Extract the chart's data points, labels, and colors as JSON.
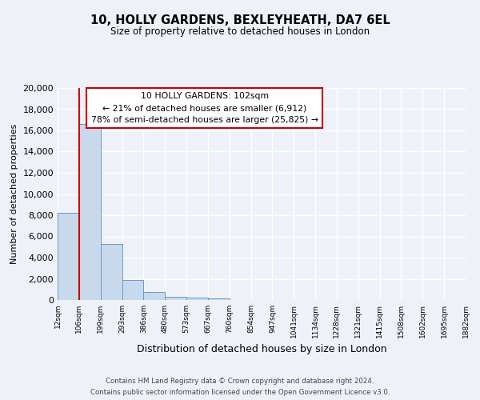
{
  "title_line1": "10, HOLLY GARDENS, BEXLEYHEATH, DA7 6EL",
  "title_line2": "Size of property relative to detached houses in London",
  "xlabel": "Distribution of detached houses by size in London",
  "ylabel": "Number of detached properties",
  "bar_values": [
    8200,
    16600,
    5300,
    1850,
    750,
    300,
    250,
    150,
    0,
    0,
    0,
    0,
    0,
    0,
    0,
    0,
    0,
    0,
    0
  ],
  "bin_labels": [
    "12sqm",
    "106sqm",
    "199sqm",
    "293sqm",
    "386sqm",
    "480sqm",
    "573sqm",
    "667sqm",
    "760sqm",
    "854sqm",
    "947sqm",
    "1041sqm",
    "1134sqm",
    "1228sqm",
    "1321sqm",
    "1415sqm",
    "1508sqm",
    "1602sqm",
    "1695sqm",
    "1882sqm"
  ],
  "ylim": [
    0,
    20000
  ],
  "yticks": [
    0,
    2000,
    4000,
    6000,
    8000,
    10000,
    12000,
    14000,
    16000,
    18000,
    20000
  ],
  "bar_color": "#c8d9ec",
  "bar_edge_color": "#6699cc",
  "vline_color": "#cc0000",
  "annotation_title": "10 HOLLY GARDENS: 102sqm",
  "annotation_line1": "← 21% of detached houses are smaller (6,912)",
  "annotation_line2": "78% of semi-detached houses are larger (25,825) →",
  "annotation_box_color": "#ffffff",
  "annotation_border_color": "#cc0000",
  "footer_line1": "Contains HM Land Registry data © Crown copyright and database right 2024.",
  "footer_line2": "Contains public sector information licensed under the Open Government Licence v3.0.",
  "background_color": "#eef2f8",
  "grid_color": "#ffffff"
}
